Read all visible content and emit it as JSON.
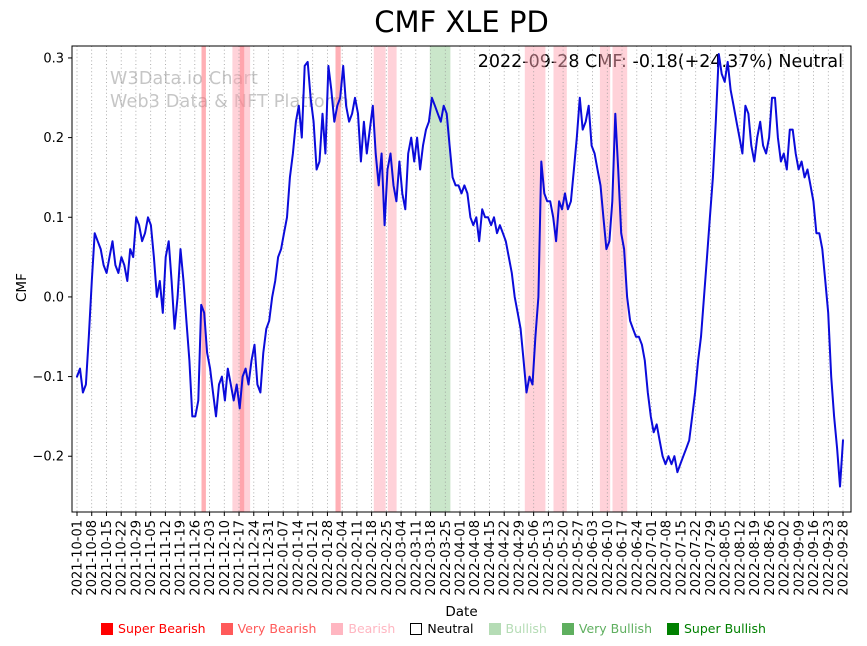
{
  "watermark": {
    "line1": "W3Data.io Chart",
    "line2": "Web3 Data & NFT Platform"
  },
  "chart_data": {
    "type": "line",
    "title": "CMF XLE PD",
    "annotation": "2022-09-28 CMF: -0.18(+24.37%) Neutral",
    "xlabel": "Date",
    "ylabel": "CMF",
    "ylim": [
      -0.27,
      0.315
    ],
    "yticks": {
      "values": [
        0.3,
        0.2,
        0.1,
        0.0,
        -0.1,
        -0.2
      ],
      "labels": [
        "0.3",
        "0.2",
        "0.1",
        "0.0",
        "−0.1",
        "−0.2"
      ]
    },
    "grid": {
      "vertical": true,
      "style": "dotted"
    },
    "line_color": "#0b0bdb",
    "legend_position": "bottom",
    "xticks": [
      "2021-10-01",
      "2021-10-08",
      "2021-10-15",
      "2021-10-22",
      "2021-10-29",
      "2021-11-05",
      "2021-11-12",
      "2021-11-19",
      "2021-11-26",
      "2021-12-03",
      "2021-12-10",
      "2021-12-17",
      "2021-12-24",
      "2021-12-31",
      "2022-01-07",
      "2022-01-14",
      "2022-01-21",
      "2022-01-28",
      "2022-02-04",
      "2022-02-11",
      "2022-02-18",
      "2022-02-25",
      "2022-03-04",
      "2022-03-11",
      "2022-03-18",
      "2022-03-25",
      "2022-04-01",
      "2022-04-08",
      "2022-04-15",
      "2022-04-22",
      "2022-04-29",
      "2022-05-06",
      "2022-05-13",
      "2022-05-20",
      "2022-05-27",
      "2022-06-03",
      "2022-06-10",
      "2022-06-17",
      "2022-06-24",
      "2022-07-01",
      "2022-07-08",
      "2022-07-15",
      "2022-07-22",
      "2022-07-29",
      "2022-08-05",
      "2022-08-12",
      "2022-08-19",
      "2022-08-26",
      "2022-09-02",
      "2022-09-09",
      "2022-09-16",
      "2022-09-23",
      "2022-09-28"
    ],
    "series": [
      {
        "name": "CMF",
        "values": [
          -0.1,
          -0.09,
          -0.12,
          -0.11,
          -0.05,
          0.02,
          0.08,
          0.07,
          0.06,
          0.04,
          0.03,
          0.05,
          0.07,
          0.04,
          0.03,
          0.05,
          0.04,
          0.02,
          0.06,
          0.05,
          0.1,
          0.09,
          0.07,
          0.08,
          0.1,
          0.09,
          0.05,
          0.0,
          0.02,
          -0.02,
          0.05,
          0.07,
          0.02,
          -0.04,
          0.0,
          0.06,
          0.02,
          -0.03,
          -0.08,
          -0.15,
          -0.15,
          -0.13,
          -0.01,
          -0.02,
          -0.07,
          -0.09,
          -0.12,
          -0.15,
          -0.11,
          -0.1,
          -0.13,
          -0.09,
          -0.11,
          -0.13,
          -0.11,
          -0.14,
          -0.1,
          -0.09,
          -0.11,
          -0.08,
          -0.06,
          -0.11,
          -0.12,
          -0.07,
          -0.04,
          -0.03,
          0.0,
          0.02,
          0.05,
          0.06,
          0.08,
          0.1,
          0.15,
          0.18,
          0.22,
          0.24,
          0.2,
          0.29,
          0.295,
          0.25,
          0.22,
          0.16,
          0.17,
          0.23,
          0.18,
          0.29,
          0.26,
          0.22,
          0.24,
          0.25,
          0.29,
          0.24,
          0.22,
          0.23,
          0.25,
          0.23,
          0.17,
          0.22,
          0.18,
          0.21,
          0.24,
          0.18,
          0.14,
          0.18,
          0.09,
          0.16,
          0.18,
          0.14,
          0.12,
          0.17,
          0.13,
          0.11,
          0.18,
          0.2,
          0.17,
          0.2,
          0.16,
          0.19,
          0.21,
          0.22,
          0.25,
          0.24,
          0.23,
          0.22,
          0.24,
          0.23,
          0.19,
          0.15,
          0.14,
          0.14,
          0.13,
          0.14,
          0.13,
          0.1,
          0.09,
          0.1,
          0.07,
          0.11,
          0.1,
          0.1,
          0.09,
          0.1,
          0.08,
          0.09,
          0.08,
          0.07,
          0.05,
          0.03,
          0.0,
          -0.02,
          -0.04,
          -0.08,
          -0.12,
          -0.1,
          -0.11,
          -0.05,
          0.0,
          0.17,
          0.13,
          0.12,
          0.12,
          0.1,
          0.07,
          0.12,
          0.11,
          0.13,
          0.11,
          0.12,
          0.16,
          0.2,
          0.25,
          0.21,
          0.22,
          0.24,
          0.19,
          0.18,
          0.16,
          0.14,
          0.1,
          0.06,
          0.07,
          0.12,
          0.23,
          0.16,
          0.08,
          0.06,
          0.0,
          -0.03,
          -0.04,
          -0.05,
          -0.05,
          -0.06,
          -0.08,
          -0.12,
          -0.15,
          -0.17,
          -0.16,
          -0.18,
          -0.2,
          -0.21,
          -0.2,
          -0.21,
          -0.2,
          -0.22,
          -0.21,
          -0.2,
          -0.19,
          -0.18,
          -0.15,
          -0.12,
          -0.08,
          -0.05,
          0.0,
          0.05,
          0.1,
          0.15,
          0.22,
          0.305,
          0.28,
          0.27,
          0.295,
          0.26,
          0.24,
          0.22,
          0.2,
          0.18,
          0.24,
          0.23,
          0.19,
          0.17,
          0.2,
          0.22,
          0.19,
          0.18,
          0.2,
          0.25,
          0.25,
          0.2,
          0.17,
          0.18,
          0.16,
          0.21,
          0.21,
          0.18,
          0.16,
          0.17,
          0.15,
          0.16,
          0.14,
          0.12,
          0.08,
          0.08,
          0.06,
          0.02,
          -0.02,
          -0.1,
          -0.15,
          -0.19,
          -0.238,
          -0.18
        ]
      }
    ],
    "bands": [
      {
        "start": 8.45,
        "end": 8.75,
        "color": "rgba(255,110,120,0.55)",
        "label": "very-bearish"
      },
      {
        "start": 10.55,
        "end": 11.75,
        "color": "rgba(255,165,180,0.5)",
        "label": "bearish"
      },
      {
        "start": 11.05,
        "end": 11.35,
        "color": "rgba(255,110,120,0.45)",
        "label": "very-bearish"
      },
      {
        "start": 17.55,
        "end": 17.9,
        "color": "rgba(255,110,120,0.55)",
        "label": "very-bearish"
      },
      {
        "start": 20.15,
        "end": 20.95,
        "color": "rgba(255,165,180,0.5)",
        "label": "bearish"
      },
      {
        "start": 21.1,
        "end": 21.7,
        "color": "rgba(255,165,180,0.5)",
        "label": "bearish"
      },
      {
        "start": 23.95,
        "end": 25.35,
        "color": "rgba(150,205,150,0.5)",
        "label": "bullish"
      },
      {
        "start": 30.4,
        "end": 31.8,
        "color": "rgba(255,165,180,0.5)",
        "label": "bearish"
      },
      {
        "start": 32.35,
        "end": 33.25,
        "color": "rgba(255,165,180,0.5)",
        "label": "bearish"
      },
      {
        "start": 35.5,
        "end": 36.2,
        "color": "rgba(255,165,180,0.5)",
        "label": "bearish"
      },
      {
        "start": 36.35,
        "end": 37.35,
        "color": "rgba(255,165,180,0.5)",
        "label": "bearish"
      }
    ],
    "legend": {
      "items": [
        {
          "label": "Super Bearish",
          "color": "#ff0000",
          "text": "#ff0000",
          "border": "#ff0000"
        },
        {
          "label": "Very Bearish",
          "color": "#ff5a5a",
          "text": "#ff5a5a",
          "border": "#ff5a5a"
        },
        {
          "label": "Bearish",
          "color": "#ffb6c1",
          "text": "#ffb6c1",
          "border": "#ffb6c1"
        },
        {
          "label": "Neutral",
          "color": "#ffffff",
          "text": "#000000",
          "border": "#000000"
        },
        {
          "label": "Bullish",
          "color": "#b5dcb5",
          "text": "#b5dcb5",
          "border": "#b5dcb5"
        },
        {
          "label": "Very Bullish",
          "color": "#5faf5f",
          "text": "#5faf5f",
          "border": "#5faf5f"
        },
        {
          "label": "Super Bullish",
          "color": "#008000",
          "text": "#008000",
          "border": "#008000"
        }
      ]
    }
  }
}
